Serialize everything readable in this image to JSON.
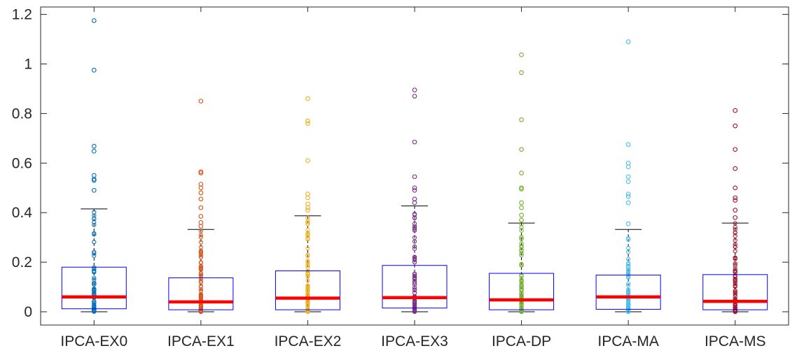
{
  "chart_data": {
    "type": "box",
    "title": "",
    "xlabel": "",
    "ylabel": "",
    "ylim": [
      -0.05,
      1.23
    ],
    "yticks": [
      0,
      0.2,
      0.4,
      0.6,
      0.8,
      1,
      1.2
    ],
    "ytick_labels": [
      "0",
      "0.2",
      "0.4",
      "0.6",
      "0.8",
      "1",
      "1.2"
    ],
    "grid": false,
    "colors": {
      "box": "#0000ff",
      "median": "#ff0000",
      "whisker": "#000000",
      "axis": "#262626"
    },
    "categories": [
      "IPCA-EX0",
      "IPCA-EX1",
      "IPCA-EX2",
      "IPCA-EX3",
      "IPCA-DP",
      "IPCA-MA",
      "IPCA-MS"
    ],
    "series": [
      {
        "color": "#0072bd",
        "min": 0.0,
        "q1": 0.012,
        "median": 0.06,
        "q3": 0.18,
        "max": 0.415,
        "outliers": [
          1.175,
          0.975,
          0.668,
          0.648,
          0.55,
          0.535,
          0.53,
          0.49
        ]
      },
      {
        "color": "#d95319",
        "min": 0.0,
        "q1": 0.008,
        "median": 0.04,
        "q3": 0.137,
        "max": 0.332,
        "outliers": [
          0.85,
          0.565,
          0.56,
          0.515,
          0.5,
          0.48,
          0.455,
          0.42,
          0.385,
          0.36,
          0.345
        ]
      },
      {
        "color": "#edb120",
        "min": 0.0,
        "q1": 0.008,
        "median": 0.055,
        "q3": 0.165,
        "max": 0.387,
        "outliers": [
          0.86,
          0.77,
          0.76,
          0.61,
          0.475,
          0.46,
          0.435,
          0.42,
          0.41
        ]
      },
      {
        "color": "#7e2f8e",
        "min": 0.0,
        "q1": 0.015,
        "median": 0.057,
        "q3": 0.187,
        "max": 0.427,
        "outliers": [
          0.895,
          0.87,
          0.685,
          0.545,
          0.5,
          0.49,
          0.455,
          0.44
        ]
      },
      {
        "color": "#77ac30",
        "min": 0.0,
        "q1": 0.008,
        "median": 0.048,
        "q3": 0.155,
        "max": 0.358,
        "outliers": [
          1.037,
          0.965,
          0.775,
          0.655,
          0.56,
          0.5,
          0.495,
          0.44,
          0.42,
          0.39,
          0.37
        ]
      },
      {
        "color": "#4dbeee",
        "min": 0.0,
        "q1": 0.01,
        "median": 0.06,
        "q3": 0.148,
        "max": 0.332,
        "outliers": [
          1.09,
          0.675,
          0.6,
          0.585,
          0.545,
          0.525,
          0.475,
          0.465,
          0.44,
          0.355
        ]
      },
      {
        "color": "#a2142f",
        "min": 0.0,
        "q1": 0.008,
        "median": 0.042,
        "q3": 0.15,
        "max": 0.358,
        "outliers": [
          0.812,
          0.75,
          0.655,
          0.578,
          0.5,
          0.46,
          0.45,
          0.41,
          0.38
        ]
      }
    ]
  }
}
